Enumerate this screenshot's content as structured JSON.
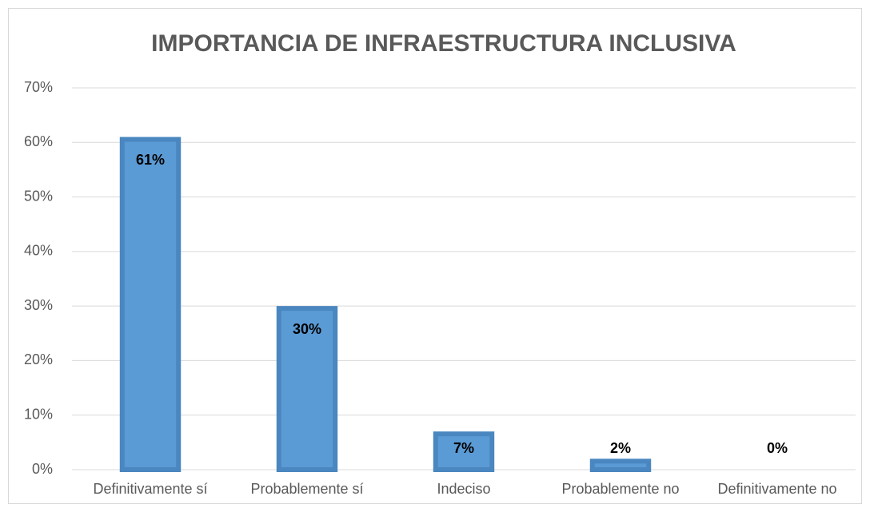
{
  "chart_data": {
    "type": "bar",
    "title": "IMPORTANCIA DE INFRAESTRUCTURA INCLUSIVA",
    "categories": [
      "Definitivamente sí",
      "Probablemente sí",
      "Indeciso",
      "Probablemente no",
      "Definitivamente no"
    ],
    "values": [
      61,
      30,
      7,
      2,
      0
    ],
    "value_labels": [
      "61%",
      "30%",
      "7%",
      "2%",
      "0%"
    ],
    "color": "#5b9bd5",
    "ylim": [
      0,
      70
    ],
    "yticks": [
      {
        "value": 0,
        "label": "0%"
      },
      {
        "value": 10,
        "label": "10%"
      },
      {
        "value": 20,
        "label": "20%"
      },
      {
        "value": 30,
        "label": "30%"
      },
      {
        "value": 40,
        "label": "40%"
      },
      {
        "value": 50,
        "label": "50%"
      },
      {
        "value": 60,
        "label": "60%"
      },
      {
        "value": 70,
        "label": "70%"
      }
    ],
    "grid": true
  }
}
